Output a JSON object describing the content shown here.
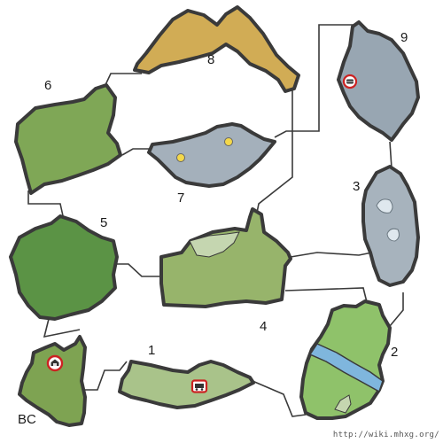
{
  "map": {
    "areas": {
      "a1": {
        "label": "1",
        "color": "#a9c38a"
      },
      "a2": {
        "label": "2",
        "color": "#8fc26a"
      },
      "a3": {
        "label": "3",
        "color": "#a7b3bd"
      },
      "a4": {
        "label": "4",
        "color": "#97b46b"
      },
      "a5": {
        "label": "5",
        "color": "#5b9345"
      },
      "a6": {
        "label": "6",
        "color": "#7fa756"
      },
      "a7": {
        "label": "7",
        "color": "#a4b0bb"
      },
      "a8": {
        "label": "8",
        "color": "#d1ac55"
      },
      "a9": {
        "label": "9",
        "color": "#98a6b2"
      },
      "bc": {
        "label": "BC",
        "color": "#7ea352"
      }
    },
    "colors": {
      "outline": "#3a3a3a",
      "river": "#7fb6dd",
      "ice": "#dfe8ee",
      "pale_patch": "#c5d6b0",
      "item_marker": "#cc2222",
      "gather_point": "#f4d84a"
    },
    "icons": {
      "bc_marker": "camp-supply-box-icon",
      "area1_marker": "supply-cart-icon",
      "area9_marker": "bug-gather-icon",
      "area7_points": "mining-point-icon"
    },
    "watermark": "http://wiki.mhxg.org/"
  }
}
